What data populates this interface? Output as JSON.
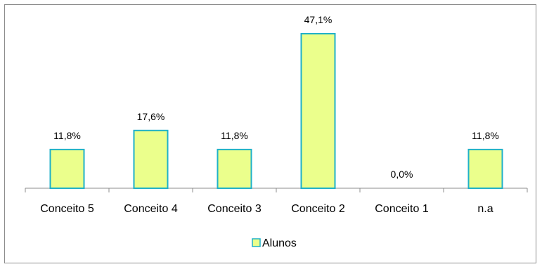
{
  "chart_data": {
    "type": "bar",
    "categories": [
      "Conceito 5",
      "Conceito 4",
      "Conceito 3",
      "Conceito 2",
      "Conceito 1",
      "n.a"
    ],
    "series": [
      {
        "name": "Alunos",
        "values": [
          11.8,
          17.6,
          11.8,
          47.1,
          0.0,
          11.8
        ]
      }
    ],
    "data_labels": [
      "11,8%",
      "17,6%",
      "11,8%",
      "47,1%",
      "0,0%",
      "11,8%"
    ],
    "ylim": [
      0,
      50
    ],
    "grid": false,
    "legend_position": "bottom",
    "colors": {
      "bar_fill": "#ebff8c",
      "bar_stroke": "#1fb1c9",
      "axis": "#8c8c8c"
    }
  }
}
